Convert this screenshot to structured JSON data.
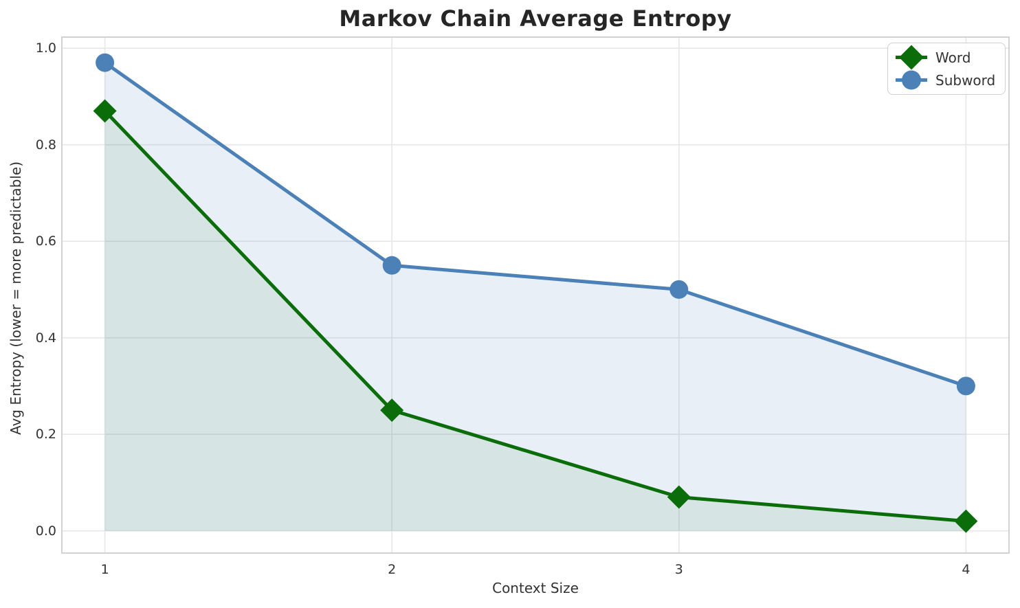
{
  "page": {
    "background": "#ffffff"
  },
  "chart_data": {
    "type": "line",
    "title": "Markov Chain Average Entropy",
    "xlabel": "Context Size",
    "ylabel": "Avg Entropy (lower = more predictable)",
    "x": [
      1,
      2,
      3,
      4
    ],
    "series": [
      {
        "name": "Word",
        "marker": "diamond",
        "color": "#0a6d0a",
        "fill": "rgba(10,109,10,0.08)",
        "values": [
          0.87,
          0.25,
          0.07,
          0.02
        ]
      },
      {
        "name": "Subword",
        "marker": "circle",
        "color": "#4b81b6",
        "fill": "rgba(75,129,182,0.13)",
        "values": [
          0.97,
          0.55,
          0.5,
          0.3
        ]
      }
    ],
    "xticks": [
      "1",
      "2",
      "3",
      "4"
    ],
    "yticks": [
      "0.0",
      "0.2",
      "0.4",
      "0.6",
      "0.8",
      "1.0"
    ],
    "xlim": [
      0.85,
      4.15
    ],
    "ylim": [
      -0.046,
      1.023
    ],
    "grid": true,
    "area_fill_baseline": 0,
    "legend": {
      "position": "upper-right"
    },
    "style": {
      "grid_color": "#e7e7e7",
      "spine_color": "#d2d2d2",
      "tick_color": "#333333",
      "label_color": "#333333",
      "title_color": "#262626",
      "legend_border_color": "#cfcfcf",
      "line_width": 5
    }
  }
}
